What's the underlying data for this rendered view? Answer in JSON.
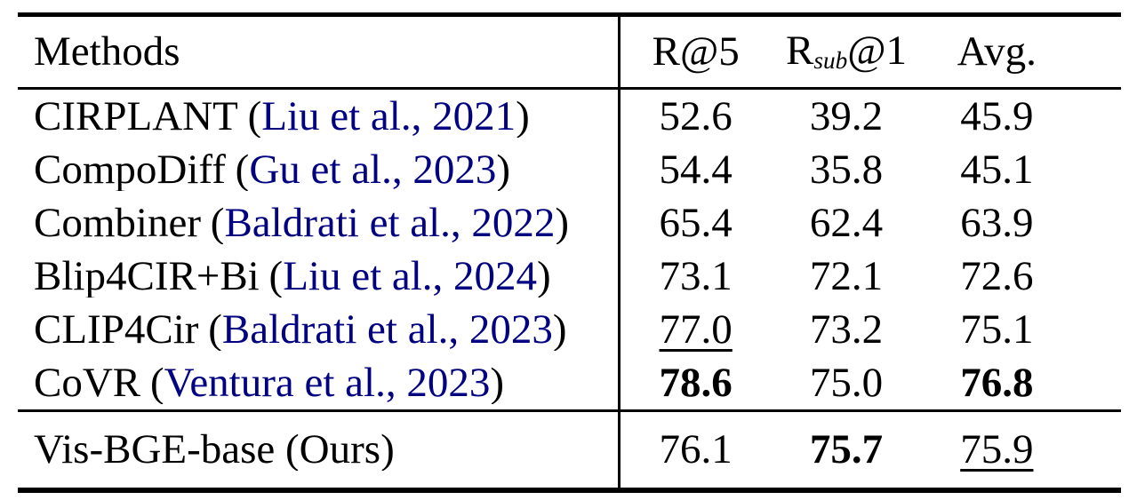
{
  "colors": {
    "text": "#000000",
    "citation_link": "#000080",
    "rule": "#000000",
    "background": "#ffffff"
  },
  "punct": {
    "open_paren": "(",
    "close_paren": ")"
  },
  "header": {
    "methods": "Methods",
    "r5": "R@5",
    "rsub_base": "R",
    "rsub_sub": "sub",
    "rsub_tail": "@1",
    "avg": "Avg."
  },
  "rows": [
    {
      "method": "CIRPLANT",
      "citation": "Liu et al., 2021",
      "r5": "52.6",
      "rsub1": "39.2",
      "avg": "45.9",
      "emphasis": {}
    },
    {
      "method": "CompoDiff",
      "citation": "Gu et al., 2023",
      "r5": "54.4",
      "rsub1": "35.8",
      "avg": "45.1",
      "emphasis": {}
    },
    {
      "method": "Combiner",
      "citation": "Baldrati et al., 2022",
      "r5": "65.4",
      "rsub1": "62.4",
      "avg": "63.9",
      "emphasis": {}
    },
    {
      "method": "Blip4CIR+Bi",
      "citation": "Liu et al., 2024",
      "r5": "73.1",
      "rsub1": "72.1",
      "avg": "72.6",
      "emphasis": {}
    },
    {
      "method": "CLIP4Cir",
      "citation": "Baldrati et al., 2023",
      "r5": "77.0",
      "rsub1": "73.2",
      "avg": "75.1",
      "emphasis": {
        "r5": "underline"
      }
    },
    {
      "method": "CoVR",
      "citation": "Ventura et al., 2023",
      "r5": "78.6",
      "rsub1": "75.0",
      "avg": "76.8",
      "emphasis": {
        "r5": "bold",
        "avg": "bold"
      }
    }
  ],
  "ours_row": {
    "method": "Vis-BGE-base (Ours)",
    "r5": "76.1",
    "rsub1": "75.7",
    "avg": "75.9",
    "emphasis": {
      "rsub1": "bold",
      "avg": "underline"
    }
  }
}
